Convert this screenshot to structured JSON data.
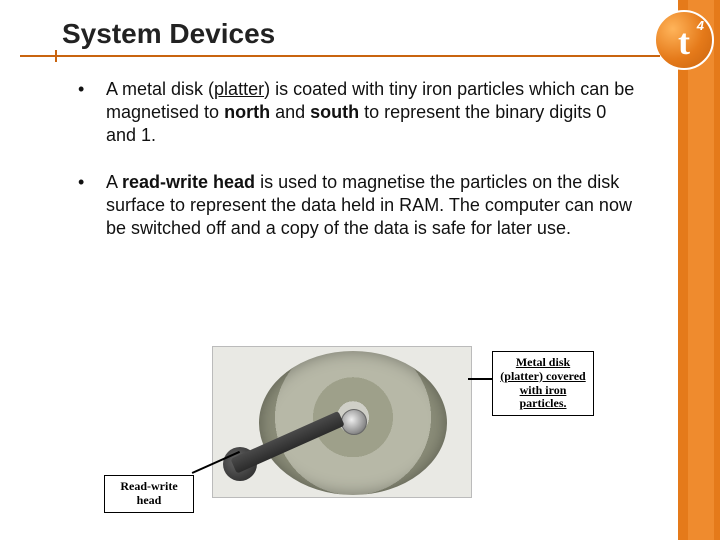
{
  "title": "System Devices",
  "logo": {
    "letter": "t",
    "sup": "4"
  },
  "bullets": [
    {
      "pre": "A metal disk (",
      "u1": "platter",
      "mid1": ") is coated with tiny iron particles which can be magnetised to ",
      "b1": "north",
      "mid2": " and ",
      "b2": "south",
      "post": " to represent the binary digits 0 and 1."
    },
    {
      "pre": "A ",
      "b1": "read-write head",
      "post": " is used to magnetise the particles on the disk surface to represent the data held in RAM.  The computer can now be switched off and a copy of the data is safe for later use."
    }
  ],
  "callout_right": "Metal disk (platter) covered with iron particles.",
  "callout_left_l1": "Read-write",
  "callout_left_l2": "head",
  "fig_caption_red": "",
  "colors": {
    "accent": "#e57a1a",
    "accent_dark": "#c9640f",
    "text": "#111111",
    "bg": "#ffffff"
  }
}
